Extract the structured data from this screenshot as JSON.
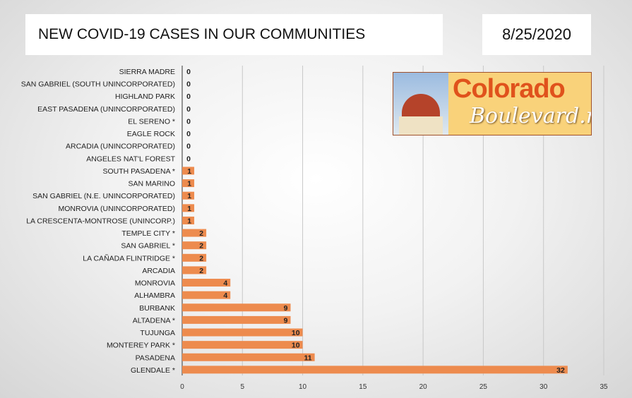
{
  "header": {
    "title": "NEW COVID-19 CASES IN OUR COMMUNITIES",
    "date": "8/25/2020"
  },
  "logo": {
    "line1": "Colorado",
    "line2": "Boulevard.net"
  },
  "colors": {
    "bar": "#ed8b4e",
    "grid": "#c8c8c8"
  },
  "chart_data": {
    "type": "bar",
    "orientation": "horizontal",
    "title": "NEW COVID-19 CASES IN OUR COMMUNITIES",
    "categories": [
      "SIERRA MADRE",
      "SAN GABRIEL (SOUTH UNINCORPORATED)",
      "HIGHLAND PARK",
      "EAST PASADENA (UNINCORPORATED)",
      "EL SERENO *",
      "EAGLE ROCK",
      "ARCADIA (UNINCORPORATED)",
      "ANGELES NAT'L FOREST",
      "SOUTH PASADENA *",
      "SAN MARINO",
      "SAN GABRIEL (N.E. UNINCORPORATED)",
      "MONROVIA (UNINCORPORATED)",
      "LA CRESCENTA-MONTROSE (UNINCORP.)",
      "TEMPLE CITY *",
      "SAN GABRIEL *",
      "LA CAÑADA FLINTRIDGE *",
      "ARCADIA",
      "MONROVIA",
      "ALHAMBRA",
      "BURBANK",
      "ALTADENA *",
      "TUJUNGA",
      "MONTEREY PARK *",
      "PASADENA",
      "GLENDALE *"
    ],
    "values": [
      0,
      0,
      0,
      0,
      0,
      0,
      0,
      0,
      1,
      1,
      1,
      1,
      1,
      2,
      2,
      2,
      2,
      4,
      4,
      9,
      9,
      10,
      10,
      11,
      32
    ],
    "xlim": [
      0,
      35
    ],
    "xticks": [
      0,
      5,
      10,
      15,
      20,
      25,
      30,
      35
    ],
    "grid": true
  }
}
